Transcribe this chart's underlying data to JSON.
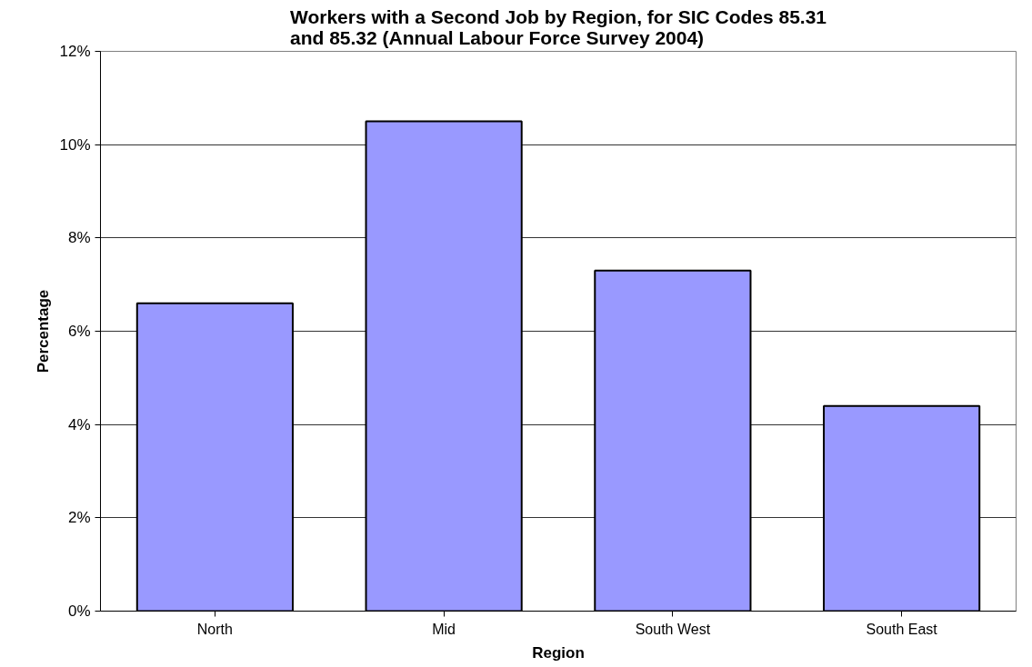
{
  "chart_data": {
    "type": "bar",
    "title": "Workers with a Second Job by Region, for SIC Codes 85.31\nand 85.32 (Annual Labour Force Survey 2004)",
    "xlabel": "Region",
    "ylabel": "Percentage",
    "categories": [
      "North",
      "Mid",
      "South West",
      "South East"
    ],
    "values": [
      6.6,
      10.5,
      7.3,
      4.4
    ],
    "color": "#9999ff",
    "ylim": [
      0,
      12
    ],
    "yticks": [
      {
        "value": 0,
        "label": "0%"
      },
      {
        "value": 2,
        "label": "2%"
      },
      {
        "value": 4,
        "label": "4%"
      },
      {
        "value": 6,
        "label": "6%"
      },
      {
        "value": 8,
        "label": "8%"
      },
      {
        "value": 10,
        "label": "10%"
      },
      {
        "value": 12,
        "label": "12%"
      }
    ],
    "grid": "y"
  }
}
